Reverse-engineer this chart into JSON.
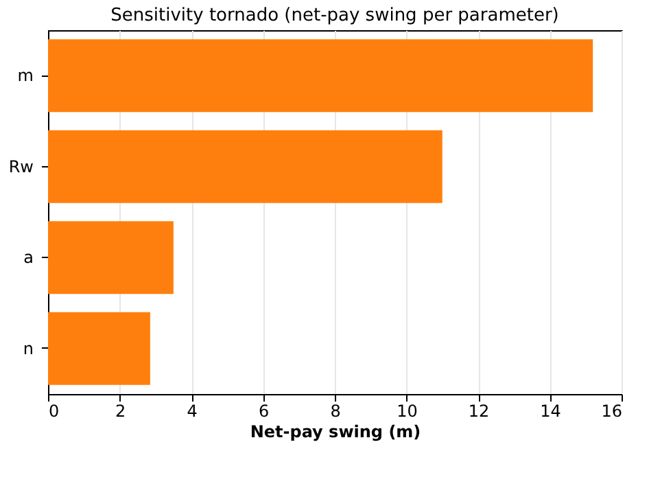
{
  "chart_data": {
    "type": "bar",
    "orientation": "horizontal",
    "title": "Sensitivity tornado (net-pay swing per parameter)",
    "xlabel": "Net-pay swing (m)",
    "categories": [
      "m",
      "Rw",
      "a",
      "n"
    ],
    "values": [
      15.2,
      11.0,
      3.5,
      2.85
    ],
    "color": "#ff7f0e",
    "xlim": [
      0,
      16
    ],
    "xticks": [
      0,
      2,
      4,
      6,
      8,
      10,
      12,
      14,
      16
    ],
    "grid": "x"
  }
}
